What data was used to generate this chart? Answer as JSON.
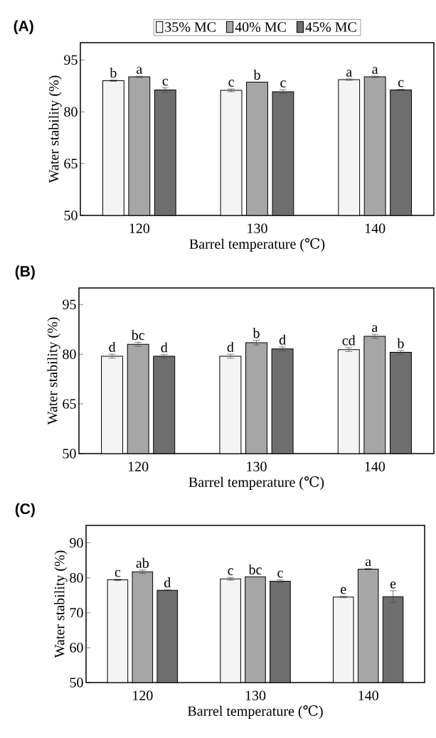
{
  "chart_data": [
    {
      "type": "bar",
      "title": "(A)",
      "xlabel": "Barrel temperature (℃)",
      "ylabel": "Water stability (%)",
      "categories": [
        "120",
        "130",
        "140"
      ],
      "ylim": [
        50,
        100
      ],
      "yticks": [
        50,
        65,
        80,
        95
      ],
      "legend": "top",
      "series": [
        {
          "name": "35% MC",
          "color": "#f4f4f4",
          "values": [
            89.0,
            86.2,
            89.3
          ],
          "errors": [
            0.2,
            0.4,
            0.2
          ],
          "value_labels": [
            "b",
            "c",
            "a"
          ]
        },
        {
          "name": "40% MC",
          "color": "#a6a6a6",
          "values": [
            90.1,
            88.6,
            90.1
          ],
          "errors": [
            0.2,
            null,
            0.2
          ],
          "value_labels": [
            "a",
            "b",
            "a"
          ]
        },
        {
          "name": "45% MC",
          "color": "#6e6e6e",
          "values": [
            86.3,
            85.8,
            86.3
          ],
          "errors": [
            0.6,
            0.6,
            0.2
          ],
          "value_labels": [
            "c",
            "c",
            "c"
          ]
        }
      ]
    },
    {
      "type": "bar",
      "title": "(B)",
      "xlabel": "Barrel temperature (℃)",
      "ylabel": "Water stability (%)",
      "categories": [
        "120",
        "130",
        "140"
      ],
      "ylim": [
        50,
        100
      ],
      "yticks": [
        50,
        65,
        80,
        95
      ],
      "series": [
        {
          "color": "#f4f4f4",
          "values": [
            79.4,
            79.4,
            81.4
          ],
          "errors": [
            0.6,
            0.6,
            0.6
          ],
          "value_labels": [
            "d",
            "d",
            "cd"
          ]
        },
        {
          "color": "#a6a6a6",
          "values": [
            83.0,
            83.5,
            85.4
          ],
          "errors": [
            0.6,
            0.7,
            0.6
          ],
          "value_labels": [
            "bc",
            "b",
            "a"
          ]
        },
        {
          "color": "#6e6e6e",
          "values": [
            79.4,
            81.6,
            80.6
          ],
          "errors": [
            0.5,
            0.6,
            0.5
          ],
          "value_labels": [
            "d",
            "d",
            "b"
          ]
        }
      ]
    },
    {
      "type": "bar",
      "title": "(C)",
      "xlabel": "Barrel temperature (℃)",
      "ylabel": "Water stability (%)",
      "categories": [
        "120",
        "130",
        "140"
      ],
      "ylim": [
        50,
        95
      ],
      "yticks": [
        50,
        60,
        70,
        80,
        90
      ],
      "series": [
        {
          "color": "#f4f4f4",
          "values": [
            79.4,
            79.7,
            74.5
          ],
          "errors": [
            0.2,
            0.4,
            0.2
          ],
          "value_labels": [
            "c",
            "c",
            "e"
          ]
        },
        {
          "color": "#a6a6a6",
          "values": [
            81.7,
            80.3,
            82.5
          ],
          "errors": [
            0.5,
            null,
            0.2
          ],
          "value_labels": [
            "ab",
            "bc",
            "a"
          ]
        },
        {
          "color": "#6e6e6e",
          "values": [
            76.4,
            79.0,
            74.6
          ],
          "errors": [
            0.2,
            0.4,
            1.7
          ],
          "value_labels": [
            "d",
            "c",
            "e"
          ]
        }
      ]
    }
  ]
}
